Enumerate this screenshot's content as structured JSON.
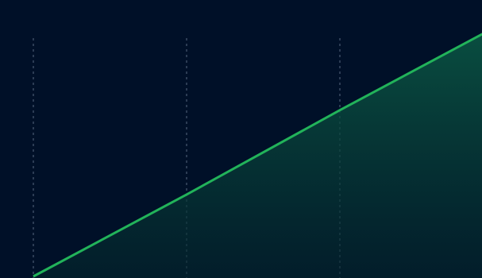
{
  "colors": {
    "background": "#001028",
    "line": "#22b35a",
    "area_top": "#0b5a45",
    "area_bottom": "#04262c",
    "gridline": "#3a4a63"
  },
  "chart_data": {
    "type": "area",
    "x": [
      0,
      1,
      2,
      3
    ],
    "series": [
      {
        "values": [
          0,
          0.33,
          0.67,
          1.0
        ]
      }
    ],
    "xlabel": "",
    "ylabel": "",
    "title": "",
    "grid": "vertical-dashed",
    "legend": "none",
    "ylim": [
      0,
      1.05
    ]
  }
}
